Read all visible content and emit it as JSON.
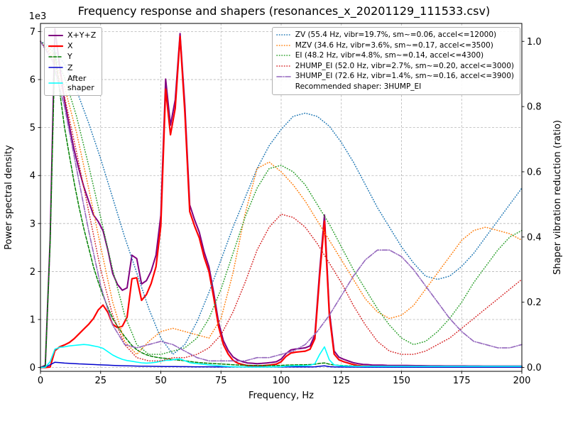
{
  "title": "Frequency response and shapers (resonances_x_20201129_111533.csv)",
  "axes": {
    "x_label": "Frequency, Hz",
    "y_left_label": "Power spectral density",
    "y_right_label": "Shaper vibration reduction (ratio)",
    "y_left_offset": "1e3",
    "x_ticks": [
      0,
      25,
      50,
      75,
      100,
      125,
      150,
      175,
      200
    ],
    "y_left_ticks": [
      0,
      1,
      2,
      3,
      4,
      5,
      6,
      7
    ],
    "y_right_ticks": [
      "0.0",
      "0.2",
      "0.4",
      "0.6",
      "0.8",
      "1.0"
    ],
    "x_range": [
      0,
      200
    ],
    "y_left_range": [
      -80,
      7170
    ],
    "y_right_range": [
      -0.012,
      1.055
    ]
  },
  "legend_series": {
    "items": [
      {
        "label": "X+Y+Z",
        "color": "#800080",
        "style": "solid",
        "width": 2
      },
      {
        "label": "X",
        "color": "#ff0000",
        "style": "solid",
        "width": 2.2
      },
      {
        "label": "Y",
        "color": "#008000",
        "style": "dashed",
        "width": 1.5
      },
      {
        "label": "Z",
        "color": "#0000cd",
        "style": "solid",
        "width": 1.5
      },
      {
        "label": "After\nshaper",
        "color": "#00ffff",
        "style": "solid",
        "width": 1.6
      }
    ]
  },
  "legend_shapers": {
    "items": [
      {
        "label": "ZV (55.4 Hz, vibr=19.7%, sm~=0.06, accel<=12000)",
        "color": "#1f77b4",
        "style": "dotted",
        "width": 1.6
      },
      {
        "label": "MZV (34.6 Hz, vibr=3.6%, sm~=0.17, accel<=3500)",
        "color": "#ff7f0e",
        "style": "dotted",
        "width": 1.6
      },
      {
        "label": "EI (48.2 Hz, vibr=4.8%, sm~=0.14, accel<=4300)",
        "color": "#2ca02c",
        "style": "dotted",
        "width": 1.6
      },
      {
        "label": "2HUMP_EI (52.0 Hz, vibr=2.7%, sm~=0.20, accel<=3000)",
        "color": "#d62728",
        "style": "dotted",
        "width": 1.6
      },
      {
        "label": "3HUMP_EI (72.6 Hz, vibr=1.4%, sm~=0.16, accel<=3900)",
        "color": "#9467bd",
        "style": "dashdot",
        "width": 1.6
      }
    ],
    "note": "Recommended shaper: 3HUMP_EI"
  },
  "chart_data": {
    "type": "line",
    "title": "Frequency response and shapers (resonances_x_20201129_111533.csv)",
    "xlabel": "Frequency, Hz",
    "ylabel": "Power spectral density",
    "ylabel_right": "Shaper vibration reduction (ratio)",
    "xlim": [
      0,
      200
    ],
    "ylim_left": [
      0,
      7000
    ],
    "ylim_right": [
      0.0,
      1.0
    ],
    "grid": true,
    "legend_position": [
      "upper left",
      "upper right"
    ],
    "recommended_shaper": "3HUMP_EI",
    "psd_x": [
      0,
      2,
      4,
      6,
      8,
      10,
      12,
      14,
      16,
      18,
      20,
      22,
      24,
      26,
      28,
      30,
      32,
      34,
      36,
      38,
      40,
      42,
      44,
      46,
      48,
      50,
      52,
      54,
      56,
      58,
      60,
      62,
      64,
      66,
      68,
      70,
      72,
      74,
      76,
      78,
      80,
      82,
      84,
      86,
      88,
      90,
      92,
      94,
      96,
      98,
      100,
      102,
      104,
      106,
      108,
      110,
      112,
      114,
      116,
      118,
      120,
      122,
      124,
      126,
      128,
      130,
      132,
      134,
      136,
      138,
      140,
      142,
      144,
      146,
      148,
      150,
      152,
      154,
      156,
      158,
      160,
      162,
      164,
      166,
      168,
      170,
      172,
      174,
      176,
      178,
      180,
      182,
      184,
      186,
      188,
      190,
      192,
      194,
      196,
      198,
      200
    ],
    "psd_series": [
      {
        "name": "X+Y+Z",
        "color": "#800080",
        "style": "solid",
        "width": 2,
        "axis": "left",
        "values": [
          0,
          45,
          2665,
          7060,
          6280,
          5560,
          5030,
          4530,
          4130,
          3770,
          3470,
          3180,
          3040,
          2850,
          2450,
          1960,
          1730,
          1610,
          1660,
          2340,
          2270,
          1740,
          1810,
          2010,
          2340,
          3170,
          6010,
          5050,
          5580,
          6960,
          5460,
          3390,
          3080,
          2820,
          2410,
          2100,
          1550,
          940,
          560,
          355,
          220,
          155,
          120,
          95,
          88,
          80,
          85,
          95,
          105,
          120,
          175,
          290,
          365,
          385,
          395,
          410,
          450,
          680,
          2010,
          3180,
          1190,
          345,
          215,
          170,
          135,
          100,
          80,
          65,
          60,
          50,
          50,
          48,
          45,
          43,
          43,
          42,
          41,
          40,
          39,
          38,
          37,
          36,
          35,
          34,
          33,
          33,
          32,
          32,
          32,
          31,
          31,
          31,
          30,
          30,
          30,
          30,
          29,
          29,
          29,
          29,
          29
        ]
      },
      {
        "name": "X",
        "color": "#ff0000",
        "style": "solid",
        "width": 2.2,
        "axis": "left",
        "values": [
          0,
          0,
          10,
          350,
          430,
          470,
          520,
          600,
          700,
          800,
          900,
          1020,
          1200,
          1300,
          1150,
          900,
          830,
          860,
          1050,
          1850,
          1870,
          1400,
          1520,
          1750,
          2100,
          2950,
          5800,
          4850,
          5400,
          6900,
          5300,
          3250,
          2950,
          2700,
          2300,
          2000,
          1450,
          850,
          480,
          280,
          150,
          90,
          60,
          40,
          35,
          30,
          35,
          45,
          55,
          70,
          120,
          230,
          300,
          320,
          330,
          340,
          380,
          600,
          1900,
          3050,
          1100,
          280,
          160,
          120,
          90,
          60,
          40,
          30,
          25,
          20,
          20,
          18,
          16,
          15,
          15,
          14,
          14,
          13,
          13,
          12,
          12,
          12,
          11,
          11,
          10,
          10,
          10,
          10,
          10,
          10,
          10,
          10,
          10,
          10,
          10,
          10,
          10,
          10,
          10,
          10,
          10
        ]
      },
      {
        "name": "Y",
        "color": "#008000",
        "style": "dashed",
        "width": 1.5,
        "axis": "left",
        "values": [
          0,
          30,
          2600,
          6600,
          5750,
          5000,
          4420,
          3850,
          3350,
          2900,
          2500,
          2100,
          1780,
          1500,
          1250,
          1020,
          860,
          710,
          580,
          460,
          370,
          310,
          265,
          235,
          215,
          200,
          190,
          175,
          160,
          150,
          140,
          125,
          112,
          102,
          95,
          88,
          82,
          76,
          70,
          63,
          57,
          52,
          48,
          45,
          43,
          41,
          40,
          40,
          40,
          41,
          44,
          49,
          53,
          55,
          56,
          57,
          60,
          68,
          85,
          95,
          70,
          52,
          45,
          40,
          36,
          32,
          29,
          27,
          25,
          24,
          23,
          22,
          21,
          20,
          20,
          19,
          19,
          18,
          18,
          17,
          17,
          16,
          16,
          15,
          15,
          15,
          14,
          14,
          14,
          13,
          13,
          13,
          12,
          12,
          12,
          12,
          11,
          11,
          11,
          11,
          11
        ]
      },
      {
        "name": "Z",
        "color": "#0000cd",
        "style": "solid",
        "width": 1.5,
        "axis": "left",
        "values": [
          0,
          15,
          55,
          110,
          100,
          92,
          86,
          81,
          76,
          72,
          67,
          62,
          58,
          53,
          48,
          44,
          40,
          37,
          34,
          32,
          30,
          28,
          26,
          25,
          23,
          22,
          21,
          20,
          19,
          18,
          17,
          16,
          15,
          15,
          14,
          14,
          13,
          13,
          12,
          12,
          11,
          11,
          10,
          10,
          10,
          10,
          10,
          10,
          10,
          10,
          10,
          11,
          11,
          11,
          11,
          11,
          12,
          14,
          25,
          35,
          18,
          12,
          10,
          10,
          9,
          9,
          9,
          8,
          8,
          8,
          8,
          8,
          8,
          8,
          8,
          8,
          8,
          8,
          8,
          8,
          8,
          8,
          8,
          8,
          8,
          8,
          8,
          8,
          8,
          8,
          8,
          8,
          8,
          8,
          8,
          8,
          8,
          8,
          8,
          8,
          8
        ]
      },
      {
        "name": "After shaper",
        "color": "#00ffff",
        "style": "solid",
        "width": 1.6,
        "axis": "left",
        "values": [
          0,
          5,
          120,
          380,
          420,
          430,
          450,
          460,
          470,
          480,
          470,
          450,
          430,
          400,
          330,
          260,
          210,
          170,
          145,
          130,
          112,
          98,
          92,
          96,
          110,
          130,
          150,
          150,
          170,
          180,
          140,
          100,
          85,
          75,
          65,
          55,
          45,
          36,
          28,
          22,
          18,
          15,
          13,
          11,
          10,
          10,
          10,
          11,
          12,
          14,
          18,
          28,
          33,
          35,
          36,
          38,
          45,
          80,
          270,
          430,
          160,
          55,
          38,
          32,
          28,
          26,
          25,
          25,
          25,
          25,
          25,
          25,
          25,
          25,
          25,
          25,
          25,
          25,
          25,
          25,
          25,
          25,
          25,
          25,
          25,
          25,
          25,
          25,
          25,
          25,
          25,
          25,
          25,
          25,
          25,
          25,
          25,
          25,
          25,
          25,
          25
        ]
      }
    ],
    "shaper_x": [
      0,
      5,
      10,
      15,
      20,
      25,
      30,
      35,
      40,
      45,
      50,
      55,
      60,
      65,
      70,
      75,
      80,
      85,
      90,
      95,
      100,
      105,
      110,
      115,
      120,
      125,
      130,
      135,
      140,
      145,
      150,
      155,
      160,
      165,
      170,
      175,
      180,
      185,
      190,
      195,
      200
    ],
    "shaper_series": [
      {
        "name": "ZV",
        "color": "#1f77b4",
        "style": "dotted",
        "width": 1.6,
        "axis": "right",
        "values": [
          1.0,
          0.98,
          0.93,
          0.85,
          0.75,
          0.64,
          0.52,
          0.4,
          0.29,
          0.18,
          0.09,
          0.04,
          0.07,
          0.14,
          0.23,
          0.33,
          0.43,
          0.52,
          0.61,
          0.68,
          0.73,
          0.77,
          0.78,
          0.77,
          0.74,
          0.69,
          0.63,
          0.56,
          0.49,
          0.43,
          0.37,
          0.32,
          0.28,
          0.27,
          0.28,
          0.31,
          0.35,
          0.4,
          0.45,
          0.5,
          0.55
        ]
      },
      {
        "name": "MZV",
        "color": "#ff7f0e",
        "style": "dotted",
        "width": 1.6,
        "axis": "right",
        "values": [
          1.0,
          0.96,
          0.86,
          0.72,
          0.55,
          0.37,
          0.2,
          0.08,
          0.04,
          0.08,
          0.11,
          0.12,
          0.11,
          0.1,
          0.09,
          0.15,
          0.29,
          0.47,
          0.61,
          0.63,
          0.6,
          0.56,
          0.51,
          0.45,
          0.39,
          0.33,
          0.27,
          0.21,
          0.17,
          0.15,
          0.16,
          0.19,
          0.24,
          0.29,
          0.34,
          0.39,
          0.42,
          0.43,
          0.42,
          0.41,
          0.39
        ]
      },
      {
        "name": "EI",
        "color": "#2ca02c",
        "style": "dotted",
        "width": 1.6,
        "axis": "right",
        "values": [
          1.0,
          0.97,
          0.89,
          0.77,
          0.62,
          0.46,
          0.3,
          0.16,
          0.07,
          0.04,
          0.04,
          0.05,
          0.06,
          0.09,
          0.15,
          0.24,
          0.35,
          0.46,
          0.55,
          0.61,
          0.62,
          0.6,
          0.56,
          0.5,
          0.44,
          0.37,
          0.3,
          0.24,
          0.18,
          0.13,
          0.09,
          0.07,
          0.08,
          0.11,
          0.15,
          0.2,
          0.26,
          0.31,
          0.36,
          0.4,
          0.42
        ]
      },
      {
        "name": "2HUMP_EI",
        "color": "#d62728",
        "style": "dotted",
        "width": 1.6,
        "axis": "right",
        "values": [
          1.0,
          0.95,
          0.83,
          0.66,
          0.48,
          0.3,
          0.16,
          0.07,
          0.03,
          0.02,
          0.02,
          0.03,
          0.03,
          0.04,
          0.06,
          0.1,
          0.17,
          0.26,
          0.36,
          0.43,
          0.47,
          0.46,
          0.43,
          0.38,
          0.32,
          0.26,
          0.19,
          0.13,
          0.08,
          0.05,
          0.04,
          0.04,
          0.05,
          0.07,
          0.09,
          0.12,
          0.15,
          0.18,
          0.21,
          0.24,
          0.27
        ]
      },
      {
        "name": "3HUMP_EI",
        "color": "#9467bd",
        "style": "dashdot",
        "width": 1.6,
        "axis": "right",
        "values": [
          1.0,
          0.94,
          0.8,
          0.61,
          0.42,
          0.25,
          0.13,
          0.07,
          0.06,
          0.07,
          0.08,
          0.07,
          0.05,
          0.03,
          0.02,
          0.02,
          0.02,
          0.02,
          0.03,
          0.03,
          0.04,
          0.05,
          0.07,
          0.11,
          0.16,
          0.22,
          0.28,
          0.33,
          0.36,
          0.36,
          0.34,
          0.3,
          0.25,
          0.2,
          0.15,
          0.11,
          0.08,
          0.07,
          0.06,
          0.06,
          0.07
        ]
      }
    ]
  }
}
